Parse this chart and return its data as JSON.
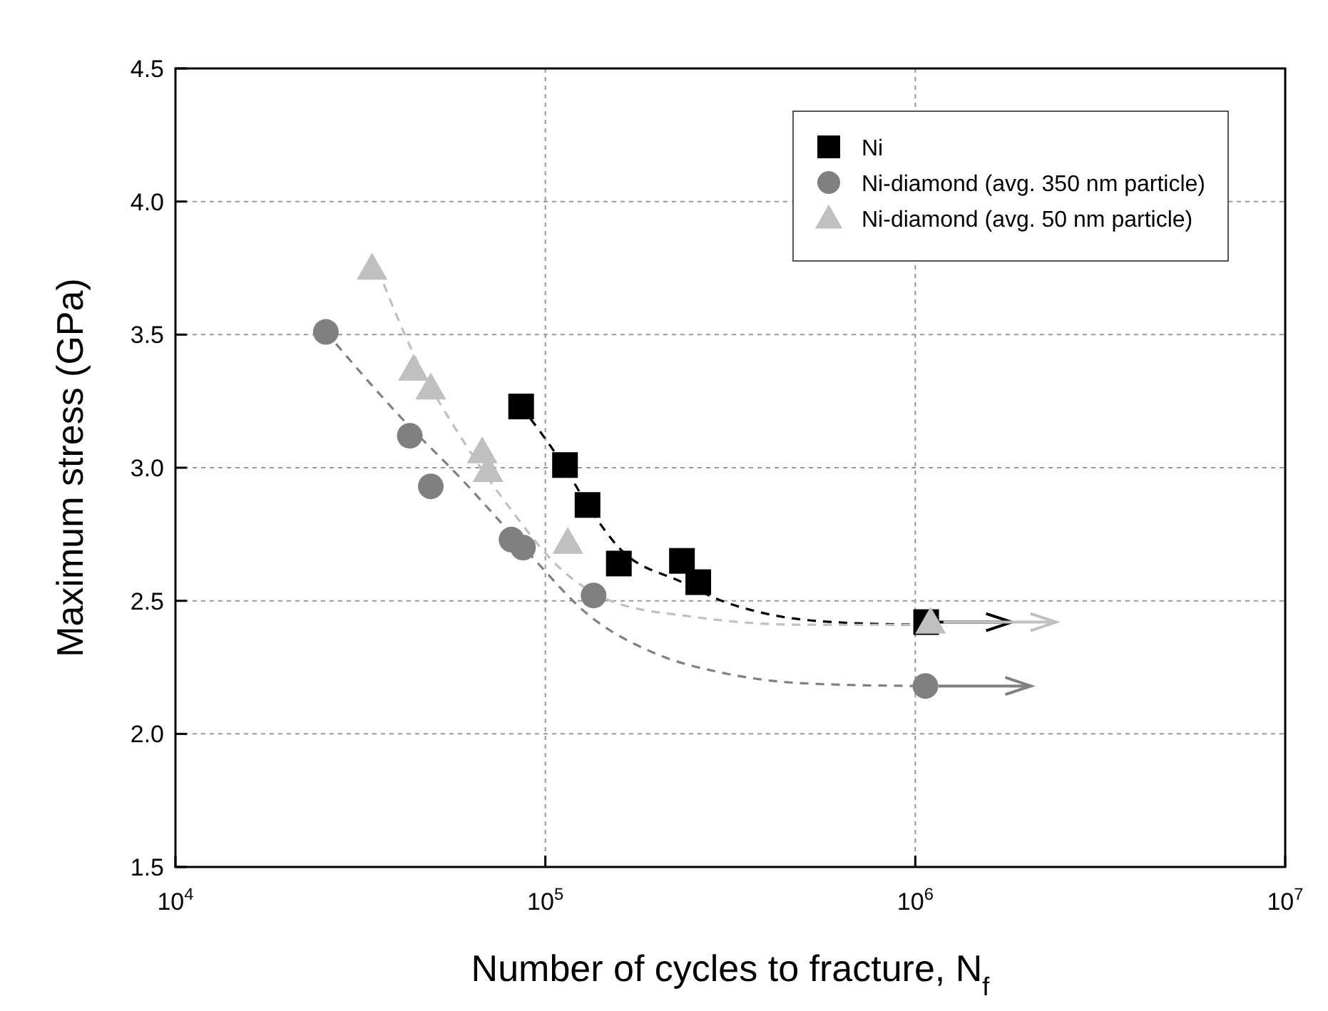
{
  "chart_data": {
    "type": "scatter",
    "xlabel": "Number of cycles to fracture, N$_{f}$",
    "ylabel": "Maximum stress (GPa)",
    "log": "x",
    "xlim": [
      10000,
      10000000
    ],
    "ylim": [
      1.5,
      4.5
    ],
    "xticks": [
      {
        "value": 10000,
        "label": "10$^{4}$"
      },
      {
        "value": 100000,
        "label": "10$^{5}$"
      },
      {
        "value": 1000000,
        "label": "10$^{6}$"
      },
      {
        "value": 10000000,
        "label": "10$^{7}$"
      }
    ],
    "yticks": [
      {
        "value": 1.5,
        "label": "1.5"
      },
      {
        "value": 2,
        "label": "2.0"
      },
      {
        "value": 2.5,
        "label": "2.5"
      },
      {
        "value": 3,
        "label": "3.0"
      },
      {
        "value": 3.5,
        "label": "3.5"
      },
      {
        "value": 4,
        "label": "4.0"
      },
      {
        "value": 4.5,
        "label": "4.5"
      }
    ],
    "grid": true,
    "legend": "top right",
    "series": [
      {
        "type": "line",
        "line_style": "dashed",
        "color": "#000000",
        "x": [
          86000,
          113000,
          130000,
          158000,
          234000,
          300000,
          400000,
          600000,
          1050000
        ],
        "values": [
          3.23,
          3.0,
          2.86,
          2.7,
          2.57,
          2.5,
          2.45,
          2.42,
          2.41
        ]
      },
      {
        "type": "line",
        "line_style": "dashed",
        "color": "#808080",
        "x": [
          25500,
          40000,
          60000,
          90000,
          130000,
          200000,
          300000,
          500000,
          1000000
        ],
        "values": [
          3.51,
          3.2,
          2.95,
          2.68,
          2.45,
          2.3,
          2.23,
          2.19,
          2.18
        ]
      },
      {
        "type": "line",
        "line_style": "dashed",
        "color": "#c0c0c0",
        "x": [
          34000,
          45000,
          60000,
          80000,
          110000,
          150000,
          250000,
          500000,
          1050000
        ],
        "values": [
          3.8,
          3.4,
          3.1,
          2.85,
          2.62,
          2.5,
          2.44,
          2.41,
          2.41
        ]
      },
      {
        "name": "Ni",
        "marker": "square",
        "color": "#000000",
        "x": [
          86000,
          113000,
          130000,
          158000,
          234000,
          259000,
          1070000
        ],
        "values": [
          3.23,
          3.01,
          2.86,
          2.64,
          2.65,
          2.57,
          2.42
        ]
      },
      {
        "name": "Ni-diamond (avg. 350 nm particle)",
        "marker": "circle",
        "color": "#808080",
        "x": [
          25500,
          43000,
          49000,
          81000,
          87000,
          135000,
          1065000
        ],
        "values": [
          3.51,
          3.12,
          2.93,
          2.73,
          2.7,
          2.52,
          2.18
        ]
      },
      {
        "name": "Ni-diamond (avg. 50 nm particle)",
        "marker": "triangle",
        "color": "#c0c0c0",
        "x": [
          34000,
          44000,
          49000,
          67500,
          70000,
          115000,
          1100000
        ],
        "values": [
          3.75,
          3.37,
          3.3,
          3.06,
          2.99,
          2.72,
          2.42
        ]
      }
    ]
  }
}
